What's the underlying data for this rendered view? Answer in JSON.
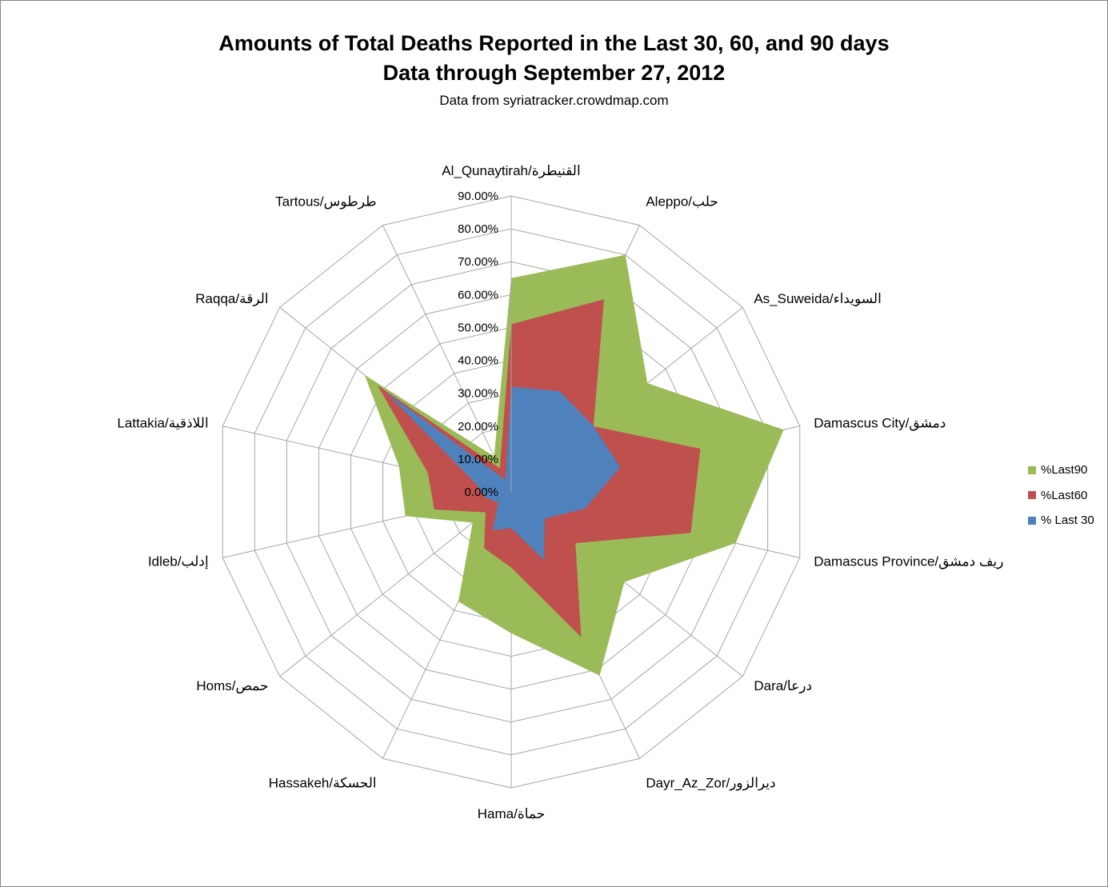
{
  "chart_data": {
    "type": "radar",
    "title": "Amounts of Total Deaths Reported in the Last 30, 60, and 90 days",
    "title_line2": "Data through September 27, 2012",
    "subtitle": "Data from syriatracker.crowdmap.com",
    "categories": [
      "Al_Qunaytirah/القنيطرة",
      "Aleppo/حلب",
      "As_Suweida/السويداء",
      "Damascus City/دمشق",
      "Damascus Province/ريف دمشق",
      "Dara/درعا",
      "Dayr_Az_Zor/ديرالزور",
      "Hama/حماة",
      "Hassakeh/الحسكة",
      "Homs/حمص",
      "Idleb/إدلب",
      "Lattakia/اللاذقية",
      "Raqqa/الرقة",
      "Tartous/طرطوس"
    ],
    "axis": {
      "min": 0,
      "max": 0.9,
      "major_unit": 0.1,
      "tick_labels": [
        "0.00%",
        "10.00%",
        "20.00%",
        "30.00%",
        "40.00%",
        "50.00%",
        "60.00%",
        "70.00%",
        "80.00%",
        "90.00%"
      ]
    },
    "series": [
      {
        "name": "%Last90",
        "color": "#9BBB59",
        "values": [
          0.65,
          0.8,
          0.53,
          0.85,
          0.7,
          0.44,
          0.62,
          0.43,
          0.37,
          0.15,
          0.33,
          0.35,
          0.57,
          0.12
        ]
      },
      {
        "name": "%Last60",
        "color": "#C0504D",
        "values": [
          0.51,
          0.65,
          0.32,
          0.59,
          0.56,
          0.25,
          0.49,
          0.23,
          0.19,
          0.1,
          0.24,
          0.26,
          0.52,
          0.08
        ]
      },
      {
        "name": "% Last 30",
        "color": "#4F81BD",
        "values": [
          0.32,
          0.34,
          0.32,
          0.34,
          0.23,
          0.13,
          0.23,
          0.11,
          0.13,
          0.05,
          0.08,
          0.11,
          0.49,
          0.04
        ]
      }
    ],
    "legend_position": "right",
    "grid": true
  }
}
